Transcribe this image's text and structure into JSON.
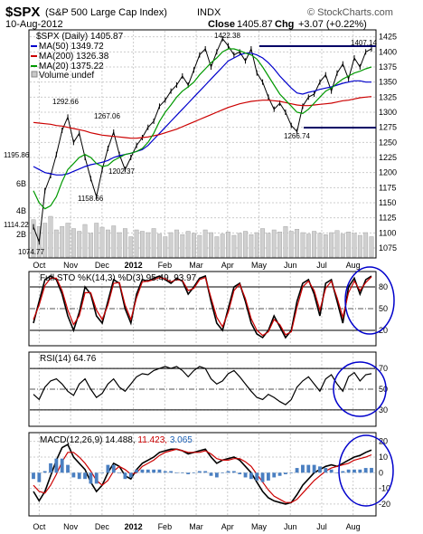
{
  "header": {
    "symbol": "$SPX",
    "name": "(S&P 500 Large Cap Index)",
    "exchange": "INDX",
    "date": "10-Aug-2012",
    "close_label": "Close",
    "close": "1405.87",
    "chg_label": "Chg",
    "chg": "+3.07 (+0.22%)",
    "watermark": "© StockCharts.com"
  },
  "panels": {
    "price": {
      "legend": {
        "main": "$SPX (Daily) 1405.87",
        "ma50": "MA(50) 1349.72",
        "ma200": "MA(200) 1326.38",
        "ma20": "MA(20) 1375.22",
        "volume": "Volume undef"
      },
      "volume_labels": [
        "6B",
        "4B",
        "2B"
      ]
    },
    "sto": {
      "legend": "Full STO %K(14,3) %D(3) 95.49, 93.97"
    },
    "rsi": {
      "legend": "RSI(14) 64.76"
    },
    "macd": {
      "legend_a": "MACD(12,26,9) 14.488,",
      "legend_b": "11.423,",
      "legend_c": "3.065"
    }
  },
  "chart_data": [
    {
      "type": "line",
      "panel": "price",
      "title": "$SPX (Daily)",
      "y_ticks": [
        1075,
        1100,
        1125,
        1150,
        1175,
        1200,
        1225,
        1250,
        1275,
        1300,
        1325,
        1350,
        1375,
        1400,
        1425
      ],
      "ylim": [
        1060,
        1435
      ],
      "x_ticks": [
        "Oct",
        "Nov",
        "Dec",
        "2012",
        "Feb",
        "Mar",
        "Apr",
        "May",
        "Jun",
        "Jul",
        "Aug"
      ],
      "annotations": [
        "1074.77",
        "1114.22",
        "1195.86",
        "1292.66",
        "1267.06",
        "1158.66",
        "1202.37",
        "1422.38",
        "1407.14",
        "1266.74"
      ],
      "series": [
        {
          "name": "$SPX",
          "values": [
            1110,
            1085,
            1170,
            1195,
            1230,
            1270,
            1292,
            1250,
            1265,
            1225,
            1190,
            1160,
            1205,
            1240,
            1267,
            1230,
            1205,
            1225,
            1245,
            1258,
            1275,
            1285,
            1310,
            1320,
            1335,
            1345,
            1360,
            1345,
            1370,
            1395,
            1405,
            1375,
            1400,
            1422,
            1410,
            1395,
            1400,
            1385,
            1405,
            1365,
            1350,
            1325,
            1305,
            1315,
            1300,
            1278,
            1268,
            1310,
            1325,
            1330,
            1350,
            1362,
            1335,
            1365,
            1380,
            1355,
            1390,
            1375,
            1400,
            1405
          ]
        },
        {
          "name": "MA(50)",
          "values": [
            1210,
            1205,
            1200,
            1198,
            1196,
            1196,
            1198,
            1202,
            1206,
            1210,
            1213,
            1215,
            1217,
            1220,
            1225,
            1228,
            1230,
            1232,
            1235,
            1238,
            1245,
            1255,
            1265,
            1275,
            1285,
            1295,
            1305,
            1315,
            1325,
            1335,
            1345,
            1355,
            1365,
            1375,
            1385,
            1390,
            1395,
            1398,
            1398,
            1395,
            1390,
            1382,
            1372,
            1360,
            1350,
            1340,
            1332,
            1330,
            1333,
            1335,
            1338,
            1340,
            1342,
            1345,
            1348,
            1350,
            1352,
            1352,
            1350,
            1350
          ]
        },
        {
          "name": "MA(200)",
          "values": [
            1283,
            1282,
            1281,
            1280,
            1278,
            1277,
            1275,
            1273,
            1271,
            1269,
            1266,
            1264,
            1262,
            1261,
            1260,
            1259,
            1258,
            1257,
            1257,
            1258,
            1259,
            1261,
            1263,
            1266,
            1269,
            1272,
            1276,
            1280,
            1284,
            1288,
            1292,
            1296,
            1300,
            1304,
            1308,
            1311,
            1314,
            1316,
            1318,
            1319,
            1320,
            1320,
            1319,
            1318,
            1316,
            1314,
            1312,
            1311,
            1311,
            1312,
            1313,
            1314,
            1315,
            1317,
            1319,
            1320,
            1322,
            1324,
            1325,
            1326
          ]
        },
        {
          "name": "MA(20)",
          "values": [
            1170,
            1150,
            1140,
            1145,
            1160,
            1185,
            1205,
            1215,
            1225,
            1230,
            1225,
            1215,
            1210,
            1212,
            1220,
            1225,
            1230,
            1232,
            1235,
            1240,
            1250,
            1265,
            1285,
            1300,
            1312,
            1325,
            1335,
            1342,
            1350,
            1362,
            1372,
            1382,
            1390,
            1400,
            1405,
            1405,
            1402,
            1398,
            1395,
            1388,
            1375,
            1360,
            1345,
            1330,
            1320,
            1310,
            1300,
            1298,
            1305,
            1315,
            1325,
            1335,
            1340,
            1348,
            1355,
            1360,
            1365,
            1368,
            1372,
            1375
          ]
        }
      ],
      "volume": [
        0.55,
        0.45,
        0.5,
        0.6,
        0.4,
        0.45,
        0.5,
        0.42,
        0.38,
        0.48,
        0.35,
        0.5,
        0.44,
        0.4,
        0.46,
        0.36,
        0.42,
        0.3,
        0.4,
        0.38,
        0.36,
        0.42,
        0.34,
        0.3,
        0.36,
        0.4,
        0.33,
        0.38,
        0.35,
        0.32,
        0.4,
        0.36,
        0.3,
        0.34,
        0.37,
        0.32,
        0.35,
        0.38,
        0.33,
        0.36,
        0.42,
        0.35,
        0.4,
        0.37,
        0.45,
        0.38,
        0.41,
        0.36,
        0.34,
        0.38,
        0.35,
        0.33,
        0.36,
        0.39,
        0.34,
        0.37,
        0.35,
        0.32,
        0.36,
        0.3
      ]
    },
    {
      "type": "line",
      "panel": "sto",
      "title": "Full STO %K(14,3) %D(3)",
      "y_ticks": [
        20,
        50,
        80
      ],
      "ylim": [
        0,
        100
      ],
      "series": [
        {
          "name": "%K",
          "values": [
            30,
            60,
            90,
            95,
            90,
            70,
            40,
            20,
            45,
            80,
            70,
            40,
            30,
            60,
            90,
            85,
            50,
            30,
            70,
            90,
            88,
            92,
            95,
            90,
            85,
            92,
            88,
            70,
            80,
            92,
            95,
            60,
            30,
            20,
            50,
            80,
            85,
            60,
            30,
            15,
            10,
            20,
            40,
            25,
            10,
            20,
            60,
            85,
            90,
            70,
            40,
            85,
            90,
            60,
            30,
            80,
            92,
            70,
            90,
            95
          ]
        },
        {
          "name": "%D",
          "values": [
            35,
            55,
            82,
            92,
            92,
            75,
            48,
            28,
            40,
            72,
            72,
            48,
            35,
            55,
            85,
            86,
            55,
            35,
            65,
            87,
            88,
            90,
            93,
            91,
            87,
            90,
            89,
            75,
            78,
            90,
            93,
            65,
            38,
            25,
            45,
            75,
            84,
            64,
            36,
            20,
            13,
            18,
            35,
            28,
            14,
            18,
            52,
            80,
            88,
            75,
            48,
            78,
            88,
            65,
            38,
            72,
            88,
            75,
            86,
            94
          ]
        }
      ]
    },
    {
      "type": "line",
      "panel": "rsi",
      "title": "RSI(14)",
      "y_ticks": [
        30,
        50,
        70
      ],
      "ylim": [
        15,
        85
      ],
      "series": [
        {
          "name": "RSI(14)",
          "values": [
            45,
            40,
            52,
            58,
            60,
            55,
            48,
            44,
            55,
            60,
            50,
            42,
            46,
            55,
            60,
            52,
            48,
            55,
            62,
            65,
            64,
            68,
            70,
            72,
            70,
            72,
            68,
            62,
            68,
            72,
            70,
            60,
            55,
            58,
            65,
            68,
            62,
            55,
            48,
            42,
            40,
            45,
            42,
            38,
            35,
            40,
            52,
            58,
            62,
            55,
            48,
            60,
            64,
            55,
            48,
            62,
            66,
            58,
            64,
            65
          ]
        }
      ]
    },
    {
      "type": "line",
      "panel": "macd",
      "title": "MACD(12,26,9)",
      "y_ticks": [
        -20,
        -10,
        0,
        10,
        20
      ],
      "ylim": [
        -27,
        25
      ],
      "series": [
        {
          "name": "MACD",
          "values": [
            -12,
            -18,
            -12,
            -2,
            8,
            16,
            18,
            10,
            6,
            2,
            -6,
            -12,
            -8,
            0,
            6,
            4,
            -2,
            -4,
            2,
            6,
            8,
            10,
            13,
            14,
            15,
            15,
            14,
            12,
            13,
            14,
            15,
            10,
            6,
            8,
            9,
            10,
            8,
            4,
            0,
            -6,
            -12,
            -16,
            -18,
            -19,
            -20,
            -19,
            -14,
            -8,
            -4,
            0,
            2,
            4,
            5,
            4,
            6,
            8,
            10,
            11,
            13,
            14.488
          ]
        },
        {
          "name": "Signal",
          "values": [
            -8,
            -12,
            -13,
            -8,
            -1,
            7,
            13,
            13,
            10,
            6,
            1,
            -5,
            -8,
            -5,
            1,
            4,
            2,
            -1,
            0,
            4,
            6,
            8,
            11,
            13,
            14,
            15,
            14,
            13,
            13,
            13,
            14,
            12,
            9,
            8,
            8,
            9,
            9,
            7,
            4,
            -1,
            -6,
            -11,
            -15,
            -17,
            -19,
            -19,
            -17,
            -13,
            -9,
            -5,
            -2,
            1,
            3,
            4,
            5,
            6,
            8,
            9,
            10,
            11.423
          ]
        },
        {
          "name": "Histogram",
          "values": [
            -4,
            -6,
            1,
            6,
            9,
            9,
            5,
            -3,
            -4,
            -4,
            -7,
            -7,
            0,
            5,
            5,
            0,
            -4,
            -3,
            2,
            2,
            2,
            2,
            2,
            1,
            1,
            0,
            0,
            -1,
            0,
            1,
            1,
            -2,
            -3,
            0,
            1,
            1,
            -1,
            -3,
            -4,
            -5,
            -6,
            -5,
            -3,
            -2,
            -1,
            0,
            3,
            5,
            5,
            5,
            4,
            3,
            2,
            0,
            1,
            2,
            2,
            2,
            3,
            3.065
          ]
        }
      ]
    }
  ]
}
